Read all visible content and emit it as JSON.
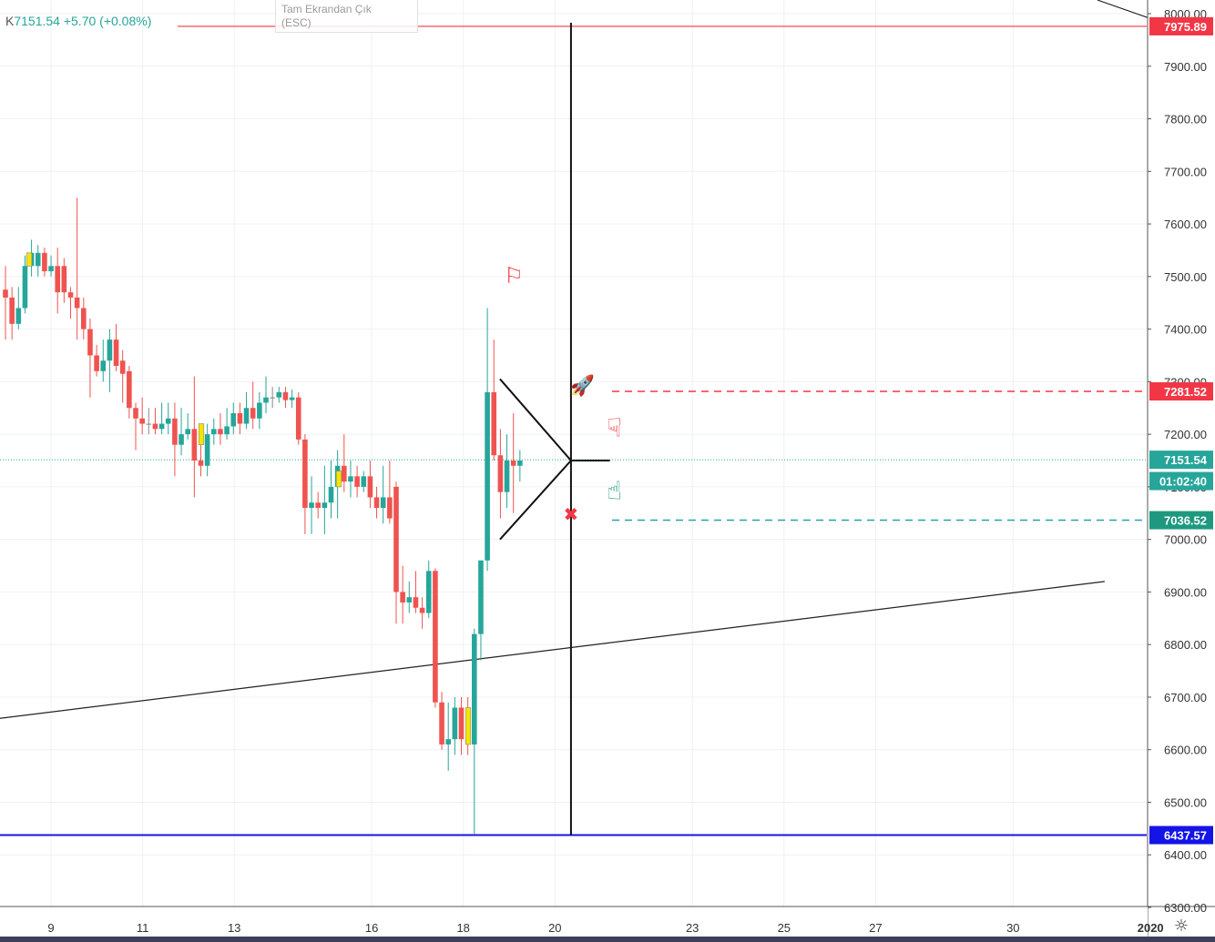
{
  "header": {
    "symbol_prefix": "K",
    "last": "7151.54",
    "change": "+5.70 (+0.08%)"
  },
  "fullscreen_hint": {
    "line1": "Tam Ekrandan Çık",
    "line2": "(ESC)"
  },
  "colors": {
    "up": "#26a69a",
    "down": "#ef5350",
    "doji": "#f5e400",
    "red_line": "#f23645",
    "blue_line": "#1414e6",
    "teal_badge": "#1e9980",
    "grid": "#eef0f4"
  },
  "chart_data": {
    "type": "candlestick",
    "x_tick_labels": [
      "9",
      "11",
      "13",
      "16",
      "18",
      "20",
      "23",
      "25",
      "27",
      "30",
      "2020"
    ],
    "y_tick_labels": [
      "8000.00",
      "7900.00",
      "7800.00",
      "7700.00",
      "7600.00",
      "7500.00",
      "7400.00",
      "7300.00",
      "7200.00",
      "7100.00",
      "7000.00",
      "6900.00",
      "6800.00",
      "6700.00",
      "6600.00",
      "6500.00",
      "6400.00",
      "6300.00"
    ],
    "ylim": [
      6290,
      8020
    ],
    "price_labels": [
      {
        "text": "7975.89",
        "value": 7975.89,
        "color": "#f23645"
      },
      {
        "text": "7281.52",
        "value": 7281.52,
        "color": "#f23645"
      },
      {
        "text": "7151.54",
        "value": 7151.54,
        "color": "#26a69a"
      },
      {
        "text": "01:02:40",
        "value": 7111,
        "color": "#26a69a"
      },
      {
        "text": "7036.52",
        "value": 7036.52,
        "color": "#1e9980"
      },
      {
        "text": "6437.57",
        "value": 6437.57,
        "color": "#1414e6"
      }
    ],
    "candles": [
      [
        7475,
        7460,
        7520,
        7380
      ],
      [
        7460,
        7410,
        7480,
        7380
      ],
      [
        7410,
        7440,
        7480,
        7400
      ],
      [
        7440,
        7520,
        7540,
        7430
      ],
      [
        7520,
        7545,
        7570,
        7500
      ],
      [
        7520,
        7545,
        7560,
        7500
      ],
      [
        7545,
        7510,
        7555,
        7500
      ],
      [
        7510,
        7520,
        7540,
        7500
      ],
      [
        7520,
        7470,
        7555,
        7430
      ],
      [
        7520,
        7470,
        7535,
        7450
      ],
      [
        7470,
        7460,
        7480,
        7420
      ],
      [
        7460,
        7440,
        7650,
        7380
      ],
      [
        7440,
        7400,
        7460,
        7380
      ],
      [
        7400,
        7350,
        7420,
        7270
      ],
      [
        7350,
        7320,
        7370,
        7310
      ],
      [
        7320,
        7340,
        7380,
        7300
      ],
      [
        7340,
        7380,
        7400,
        7280
      ],
      [
        7380,
        7330,
        7410,
        7320
      ],
      [
        7340,
        7315,
        7360,
        7260
      ],
      [
        7320,
        7250,
        7330,
        7230
      ],
      [
        7250,
        7230,
        7260,
        7170
      ],
      [
        7230,
        7220,
        7270,
        7200
      ],
      [
        7220,
        7220,
        7250,
        7200
      ],
      [
        7220,
        7210,
        7250,
        7200
      ],
      [
        7210,
        7220,
        7260,
        7200
      ],
      [
        7220,
        7230,
        7260,
        7200
      ],
      [
        7230,
        7180,
        7260,
        7120
      ],
      [
        7180,
        7200,
        7250,
        7160
      ],
      [
        7200,
        7210,
        7240,
        7190
      ],
      [
        7210,
        7150,
        7310,
        7080
      ],
      [
        7150,
        7140,
        7200,
        7120
      ],
      [
        7140,
        7200,
        7220,
        7120
      ],
      [
        7200,
        7210,
        7230,
        7180
      ],
      [
        7210,
        7200,
        7240,
        7180
      ],
      [
        7200,
        7215,
        7250,
        7190
      ],
      [
        7215,
        7240,
        7260,
        7200
      ],
      [
        7240,
        7220,
        7260,
        7200
      ],
      [
        7220,
        7250,
        7280,
        7210
      ],
      [
        7250,
        7230,
        7300,
        7210
      ],
      [
        7230,
        7260,
        7280,
        7210
      ],
      [
        7260,
        7270,
        7310,
        7240
      ],
      [
        7270,
        7270,
        7290,
        7250
      ],
      [
        7270,
        7280,
        7290,
        7260
      ],
      [
        7280,
        7265,
        7290,
        7250
      ],
      [
        7265,
        7270,
        7285,
        7250
      ],
      [
        7270,
        7190,
        7280,
        7180
      ],
      [
        7190,
        7060,
        7200,
        7010
      ],
      [
        7060,
        7070,
        7120,
        7010
      ],
      [
        7070,
        7060,
        7090,
        7040
      ],
      [
        7060,
        7070,
        7140,
        7010
      ],
      [
        7070,
        7100,
        7150,
        7040
      ],
      [
        7100,
        7140,
        7170,
        7040
      ],
      [
        7140,
        7110,
        7200,
        7090
      ],
      [
        7110,
        7120,
        7150,
        7080
      ],
      [
        7120,
        7100,
        7140,
        7080
      ],
      [
        7100,
        7120,
        7130,
        7090
      ],
      [
        7120,
        7080,
        7150,
        7060
      ],
      [
        7080,
        7060,
        7100,
        7040
      ],
      [
        7060,
        7080,
        7140,
        7030
      ],
      [
        7080,
        7040,
        7150,
        7030
      ],
      [
        7100,
        6900,
        7110,
        6840
      ],
      [
        6900,
        6880,
        6950,
        6840
      ],
      [
        6880,
        6890,
        6920,
        6860
      ],
      [
        6890,
        6870,
        6940,
        6860
      ],
      [
        6870,
        6860,
        6890,
        6830
      ],
      [
        6860,
        6940,
        6960,
        6850
      ],
      [
        6940,
        6690,
        6945,
        6680
      ],
      [
        6690,
        6610,
        6710,
        6600
      ],
      [
        6610,
        6620,
        6690,
        6560
      ],
      [
        6620,
        6680,
        6700,
        6590
      ],
      [
        6680,
        6620,
        6700,
        6590
      ],
      [
        6620,
        6610,
        6700,
        6590
      ],
      [
        6610,
        6820,
        6830,
        6440
      ],
      [
        6820,
        6960,
        6950,
        6770
      ],
      [
        6960,
        7280,
        7440,
        6940
      ],
      [
        7280,
        7160,
        7380,
        7150
      ],
      [
        7160,
        7090,
        7210,
        7040
      ],
      [
        7090,
        7150,
        7200,
        7060
      ],
      [
        7150,
        7140,
        7240,
        7050
      ],
      [
        7140,
        7150,
        7170,
        7110
      ]
    ],
    "hlines": [
      7975.89,
      6437.57
    ],
    "dashed_lines": [
      7281.52,
      7036.52
    ],
    "vertical_line_day": 20.35,
    "trendlines": [
      {
        "from": [
          7.0,
          6650
        ],
        "to": [
          32.0,
          6920
        ]
      }
    ],
    "triangle": {
      "top": [
        18.8,
        7305
      ],
      "bottom": [
        18.8,
        7000
      ],
      "apex": [
        20.35,
        7150
      ],
      "tail_end": [
        21.2,
        7150
      ]
    },
    "markers": [
      {
        "icon": "flag-icon",
        "day": 19.1,
        "value": 7500,
        "color": "#f23645"
      },
      {
        "icon": "rocket-icon",
        "day": 20.6,
        "value": 7290,
        "color": "#1414e6"
      },
      {
        "icon": "thumbs-down-icon",
        "day": 21.3,
        "value": 7210,
        "color": "#f23645"
      },
      {
        "icon": "thumbs-up-icon",
        "day": 21.3,
        "value": 7090,
        "color": "#1e9980"
      },
      {
        "icon": "close-x-icon",
        "day": 20.35,
        "value": 7045,
        "color": "#f23645"
      }
    ]
  }
}
